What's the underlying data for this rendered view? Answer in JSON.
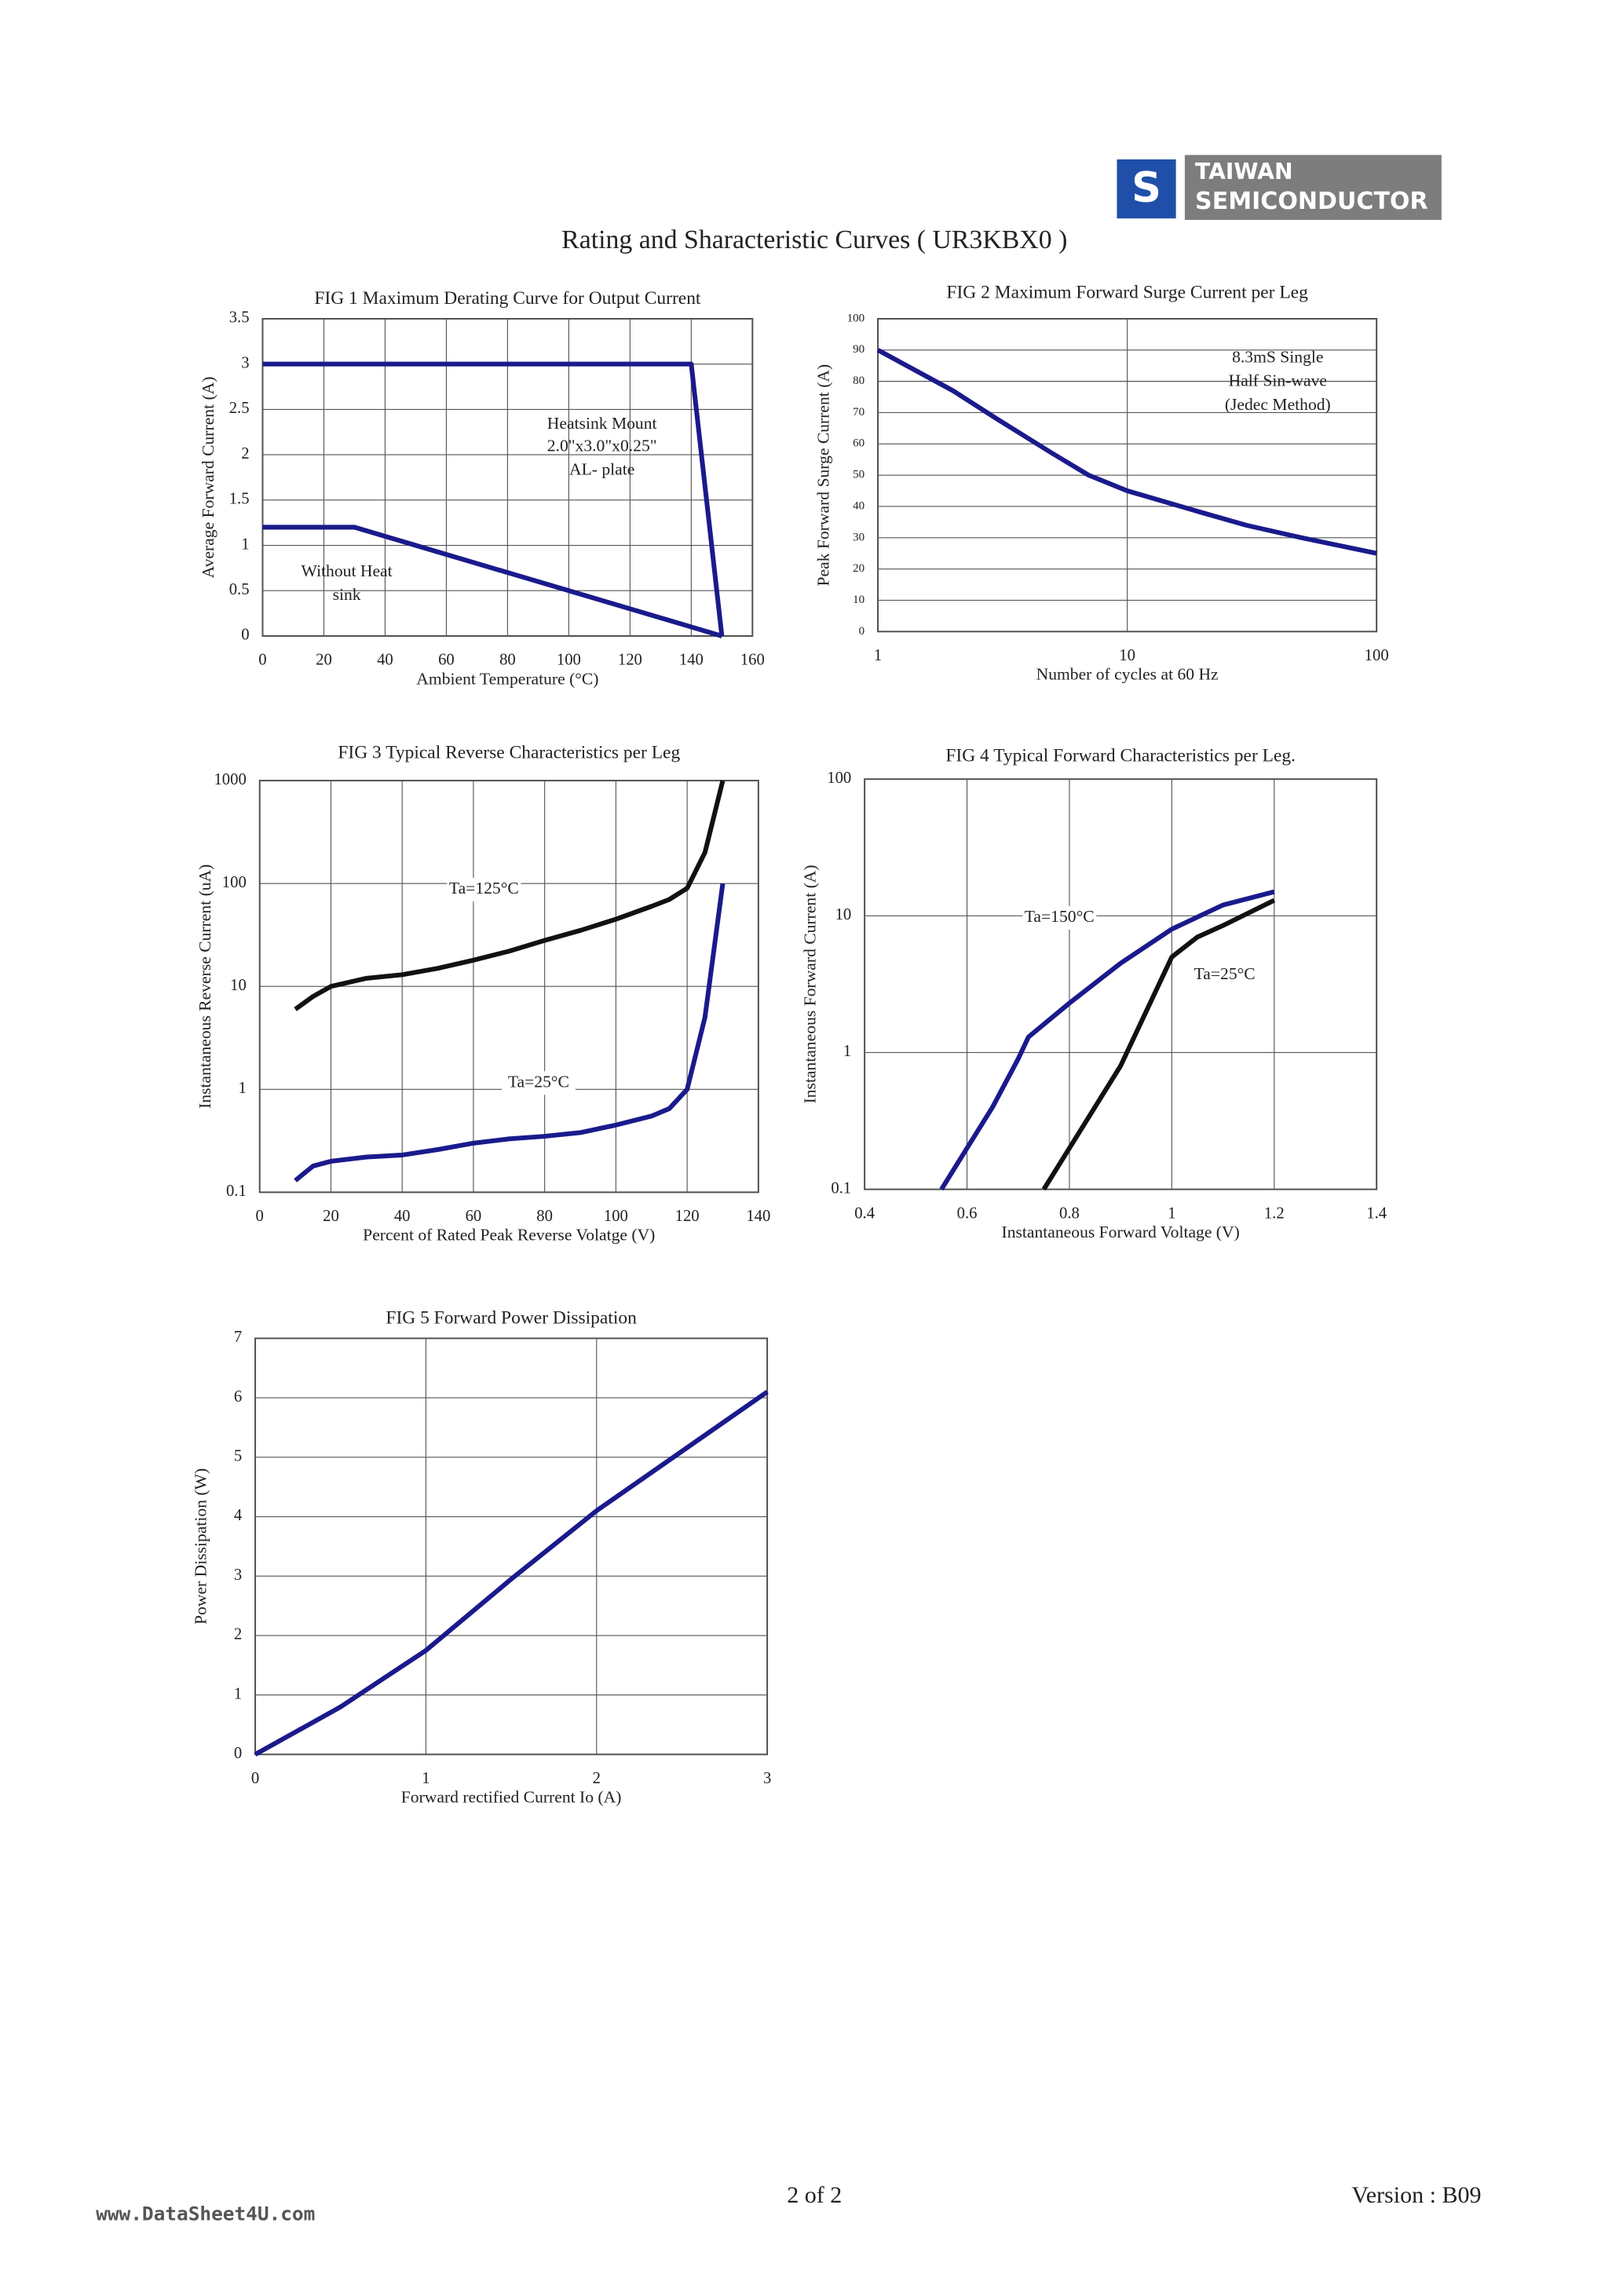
{
  "header": {
    "logo_top": "TAIWAN",
    "logo_bottom": "SEMICONDUCTOR",
    "title": "Rating and Sharacteristic Curves ( UR3KBX0 )"
  },
  "footer": {
    "site": "www.DataSheet4U.com",
    "page": "2 of 2",
    "version": "Version : B09"
  },
  "chart_data": [
    {
      "type": "line",
      "title": "FIG 1 Maximum Derating Curve for Output Current",
      "xlabel": "Ambient Temperature (°C)",
      "ylabel": "Average Forward Current (A)",
      "xlim": [
        0,
        160
      ],
      "ylim": [
        0,
        3.5
      ],
      "xticks": [
        0,
        20,
        40,
        60,
        80,
        100,
        120,
        140,
        160
      ],
      "yticks": [
        0,
        0.5,
        1,
        1.5,
        2,
        2.5,
        3,
        3.5
      ],
      "grid": true,
      "annotations": [
        "Heatsink Mount",
        "2.0\"x3.0\"x0.25\"",
        "AL- plate",
        "Without Heat",
        "sink"
      ],
      "series": [
        {
          "color": "#1a1a8c",
          "x": [
            0,
            140,
            150
          ],
          "values": [
            3,
            3,
            0
          ]
        },
        {
          "color": "#1a1a8c",
          "x": [
            0,
            30,
            150
          ],
          "values": [
            1.2,
            1.2,
            0
          ]
        }
      ]
    },
    {
      "type": "line",
      "title": "FIG 2 Maximum  Forward Surge Current per Leg",
      "xlabel": "Number of cycles at 60 Hz",
      "ylabel": "Peak Forward Surge Current (A)",
      "xlim": [
        1,
        100
      ],
      "ylim": [
        0,
        100
      ],
      "xscale": "log",
      "xticks": [
        1,
        10,
        100
      ],
      "yticks": [
        0,
        10,
        20,
        30,
        40,
        50,
        60,
        70,
        80,
        90,
        100
      ],
      "grid": true,
      "annotations": [
        "8.3mS Single",
        "Half Sin-wave",
        "(Jedec Method)"
      ],
      "series": [
        {
          "color": "#1a1a8c",
          "x": [
            1,
            2,
            3,
            5,
            7,
            10,
            20,
            30,
            50,
            100
          ],
          "values": [
            90,
            77,
            68,
            57,
            50,
            45,
            38,
            34,
            30,
            25
          ]
        }
      ]
    },
    {
      "type": "line",
      "title": "FIG 3 Typical Reverse Characteristics per Leg",
      "xlabel": "Percent of Rated Peak Reverse Volatge (V)",
      "ylabel": "Instantaneous Reverse Current (uA)",
      "xlim": [
        0,
        140
      ],
      "ylim": [
        0.1,
        1000
      ],
      "yscale": "log",
      "xticks": [
        0,
        20,
        40,
        60,
        80,
        100,
        120,
        140
      ],
      "yticks": [
        0.1,
        1,
        10,
        100,
        1000
      ],
      "grid": true,
      "series": [
        {
          "name": "Ta=125°C",
          "color": "#111111",
          "x": [
            10,
            15,
            20,
            30,
            40,
            50,
            60,
            70,
            80,
            90,
            100,
            110,
            115,
            120,
            125,
            130
          ],
          "values": [
            6,
            8,
            10,
            12,
            13,
            15,
            18,
            22,
            28,
            35,
            45,
            60,
            70,
            90,
            200,
            1000
          ]
        },
        {
          "name": "Ta=25°C",
          "color": "#1a1a8c",
          "x": [
            10,
            15,
            20,
            30,
            40,
            50,
            60,
            70,
            80,
            90,
            100,
            110,
            115,
            120,
            125,
            130
          ],
          "values": [
            0.13,
            0.18,
            0.2,
            0.22,
            0.23,
            0.26,
            0.3,
            0.33,
            0.35,
            0.38,
            0.45,
            0.55,
            0.65,
            1,
            5,
            100
          ]
        }
      ]
    },
    {
      "type": "line",
      "title": "FIG 4 Typical Forward Characteristics per Leg.",
      "xlabel": "Instantaneous Forward Voltage (V)",
      "ylabel": "Instantaneous Forward Current (A)",
      "xlim": [
        0.4,
        1.4
      ],
      "ylim": [
        0.1,
        100
      ],
      "yscale": "log",
      "xticks": [
        0.4,
        0.6,
        0.8,
        1,
        1.2,
        1.4
      ],
      "yticks": [
        0.1,
        1,
        10,
        100
      ],
      "grid": true,
      "series": [
        {
          "name": "Ta=150°C",
          "color": "#1a1a8c",
          "x": [
            0.55,
            0.6,
            0.65,
            0.7,
            0.72,
            0.8,
            0.9,
            1.0,
            1.1,
            1.2
          ],
          "values": [
            0.1,
            0.2,
            0.4,
            0.9,
            1.3,
            2.3,
            4.5,
            8,
            12,
            15
          ]
        },
        {
          "name": "Ta=25°C",
          "color": "#111111",
          "x": [
            0.75,
            0.8,
            0.9,
            0.95,
            1.0,
            1.05,
            1.1,
            1.2
          ],
          "values": [
            0.1,
            0.2,
            0.8,
            2,
            5,
            7,
            8.5,
            13
          ]
        }
      ]
    },
    {
      "type": "line",
      "title": "FIG 5 Forward Power Dissipation",
      "xlabel": "Forward rectified Current Io (A)",
      "ylabel": "Power Dissipation (W)",
      "xlim": [
        0,
        3
      ],
      "ylim": [
        0,
        7
      ],
      "xticks": [
        0,
        1,
        2,
        3
      ],
      "yticks": [
        0,
        1,
        2,
        3,
        4,
        5,
        6,
        7
      ],
      "grid": true,
      "series": [
        {
          "color": "#1a1a8c",
          "x": [
            0,
            0.5,
            1,
            1.5,
            2,
            2.5,
            3
          ],
          "values": [
            0,
            0.8,
            1.75,
            2.95,
            4.1,
            5.1,
            6.1
          ]
        }
      ]
    }
  ]
}
